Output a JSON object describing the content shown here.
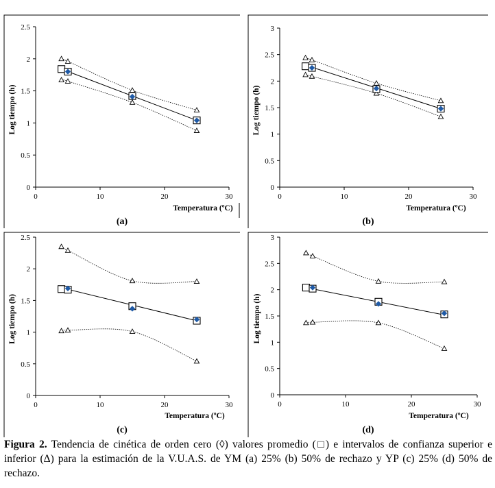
{
  "caption": {
    "label": "Figura 2.",
    "text": "Tendencia de cinética de orden cero (◊) valores promedio (□) e intervalos de confianza superior e inferior (Δ) para la estimación de la V.U.A.S. de YM (a) 25% (b) 50% de rechazo y YP (c) 25% (d) 50% de rechazo."
  },
  "chart_data": [
    {
      "type": "scatter",
      "panel_label": "(a)",
      "xlabel": "Temperatura (ºC)",
      "ylabel": "Log tiempo (h)",
      "xlim": [
        0,
        30
      ],
      "ylim": [
        0,
        2.5
      ],
      "xticks": [
        0,
        10,
        20,
        30
      ],
      "yticks": [
        0,
        0.5,
        1,
        1.5,
        2,
        2.5
      ],
      "ytick_labels": [
        "0",
        "0.5",
        "1",
        "1.5",
        "2",
        "2.5"
      ],
      "grid": false,
      "mean_x": [
        4,
        5,
        15,
        25
      ],
      "mean_y": [
        1.84,
        1.8,
        1.42,
        1.04
      ],
      "pred_x": [
        5,
        15,
        25
      ],
      "pred_y": [
        1.8,
        1.41,
        1.04
      ],
      "fit": [
        [
          4,
          1.84
        ],
        [
          25,
          1.04
        ]
      ],
      "upper_x": [
        4,
        5,
        15,
        25
      ],
      "upper_y": [
        2.0,
        1.96,
        1.51,
        1.2
      ],
      "lower_x": [
        4,
        5,
        15,
        25
      ],
      "lower_y": [
        1.67,
        1.65,
        1.32,
        0.88
      ]
    },
    {
      "type": "scatter",
      "panel_label": "(b)",
      "xlabel": "Temperatura (ºC)",
      "ylabel": "Log tiempo (h)",
      "xlim": [
        0,
        30
      ],
      "ylim": [
        0,
        3
      ],
      "xticks": [
        0,
        10,
        20,
        30
      ],
      "yticks": [
        0,
        0.5,
        1,
        1.5,
        2,
        2.5,
        3
      ],
      "ytick_labels": [
        "0",
        "0.5",
        "1",
        "1.5",
        "2",
        "2.5",
        "3"
      ],
      "grid": false,
      "mean_x": [
        4,
        5,
        15,
        25
      ],
      "mean_y": [
        2.28,
        2.25,
        1.85,
        1.48
      ],
      "pred_x": [
        5,
        15,
        25
      ],
      "pred_y": [
        2.25,
        1.86,
        1.48
      ],
      "fit": [
        [
          4,
          2.3
        ],
        [
          25,
          1.48
        ]
      ],
      "upper_x": [
        4,
        5,
        15,
        25
      ],
      "upper_y": [
        2.44,
        2.4,
        1.96,
        1.63
      ],
      "lower_x": [
        4,
        5,
        15,
        25
      ],
      "lower_y": [
        2.12,
        2.09,
        1.77,
        1.33
      ]
    },
    {
      "type": "scatter",
      "panel_label": "(c)",
      "xlabel": "Temperatura (ºC)",
      "ylabel": "Log tiempo (h)",
      "xlim": [
        0,
        30
      ],
      "ylim": [
        0,
        2.5
      ],
      "xticks": [
        0,
        10,
        20,
        30
      ],
      "yticks": [
        0,
        0.5,
        1,
        1.5,
        2,
        2.5
      ],
      "ytick_labels": [
        "0",
        "0.5",
        "1",
        "1.5",
        "2",
        "2.5"
      ],
      "grid": false,
      "mean_x": [
        4,
        5,
        15,
        25
      ],
      "mean_y": [
        1.68,
        1.67,
        1.41,
        1.18
      ],
      "pred_x": [
        5,
        15,
        25
      ],
      "pred_y": [
        1.69,
        1.37,
        1.2
      ],
      "fit": [
        [
          4,
          1.7
        ],
        [
          25,
          1.18
        ]
      ],
      "upper_x": [
        4,
        5,
        15,
        25
      ],
      "upper_y": [
        2.35,
        2.29,
        1.81,
        1.8
      ],
      "lower_x": [
        4,
        5,
        15,
        25
      ],
      "lower_y": [
        1.02,
        1.03,
        1.01,
        0.54
      ]
    },
    {
      "type": "scatter",
      "panel_label": "(d)",
      "xlabel": "Temperatura (ºC)",
      "ylabel": "Log tiempo (h)",
      "xlim": [
        0,
        30
      ],
      "ylim": [
        0,
        3
      ],
      "xticks": [
        0,
        10,
        20,
        30
      ],
      "yticks": [
        0,
        0.5,
        1,
        1.5,
        2,
        2.5,
        3
      ],
      "ytick_labels": [
        "0",
        "0.5",
        "1",
        "1.5",
        "2",
        "2.5",
        "3"
      ],
      "grid": false,
      "mean_x": [
        4,
        5,
        15,
        25
      ],
      "mean_y": [
        2.04,
        2.02,
        1.77,
        1.53
      ],
      "pred_x": [
        5,
        15,
        25
      ],
      "pred_y": [
        2.04,
        1.73,
        1.55
      ],
      "fit": [
        [
          4,
          2.04
        ],
        [
          25,
          1.52
        ]
      ],
      "upper_x": [
        4,
        5,
        15,
        25
      ],
      "upper_y": [
        2.7,
        2.64,
        2.16,
        2.15
      ],
      "lower_x": [
        4,
        5,
        15,
        25
      ],
      "lower_y": [
        1.37,
        1.38,
        1.37,
        0.88
      ]
    }
  ]
}
